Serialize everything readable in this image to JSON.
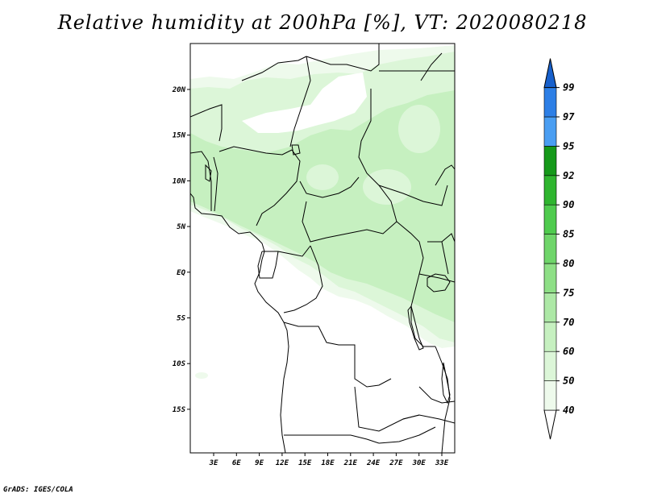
{
  "title": "Relative humidity at 200hPa [%], VT: 2020080218",
  "credit": "GrADS: IGES/COLA",
  "map": {
    "lon_labels": [
      "3E",
      "6E",
      "9E",
      "12E",
      "15E",
      "18E",
      "21E",
      "24E",
      "27E",
      "30E",
      "33E"
    ],
    "lat_labels": [
      "20N",
      "15N",
      "10N",
      "5N",
      "EQ",
      "5S",
      "10S",
      "15S"
    ]
  },
  "colorbar": {
    "levels": [
      "40",
      "50",
      "60",
      "70",
      "75",
      "80",
      "85",
      "90",
      "92",
      "95",
      "97",
      "99"
    ],
    "colors": [
      "#eefaec",
      "#dcf6d8",
      "#c6f0c0",
      "#ade8a6",
      "#8edf86",
      "#6fd56a",
      "#4fcb4e",
      "#2fb52f",
      "#15991a",
      "#4a9ef2",
      "#2d7fe6",
      "#1760cc"
    ]
  }
}
